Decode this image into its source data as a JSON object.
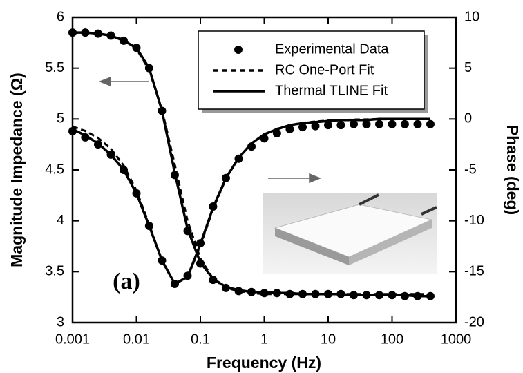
{
  "chart_data": {
    "type": "line",
    "log_x": true,
    "xlabel": "Frequency (Hz)",
    "ylabel": "Magnitude Impedance (Ω)",
    "y2label": "Phase (deg)",
    "xlim": [
      0.001,
      1000
    ],
    "xticks": [
      0.001,
      0.01,
      0.1,
      1,
      10,
      100,
      1000
    ],
    "ylim": [
      3,
      6
    ],
    "yticks": [
      3,
      3.5,
      4,
      4.5,
      5,
      5.5,
      6
    ],
    "y2lim": [
      -20,
      10
    ],
    "y2ticks": [
      -20,
      -15,
      -10,
      -5,
      0,
      5,
      10
    ],
    "legend": "upper right",
    "annotation": "(a)",
    "x": [
      0.001,
      0.00158,
      0.00251,
      0.00398,
      0.00631,
      0.01,
      0.0158,
      0.0251,
      0.0398,
      0.0631,
      0.1,
      0.158,
      0.251,
      0.398,
      0.631,
      1,
      1.58,
      2.51,
      3.98,
      6.31,
      10,
      15.8,
      25.1,
      39.8,
      63.1,
      100,
      158,
      251,
      398
    ],
    "series": [
      {
        "name": "Experimental Data",
        "color": "#000000",
        "style": "marker",
        "values": [
          5.85,
          5.85,
          5.84,
          5.82,
          5.77,
          5.7,
          5.5,
          5.08,
          4.45,
          3.9,
          3.58,
          3.42,
          3.34,
          3.31,
          3.3,
          3.29,
          3.29,
          3.28,
          3.28,
          3.28,
          3.28,
          3.28,
          3.27,
          3.27,
          3.27,
          3.27,
          3.26,
          3.26,
          3.26
        ]
      },
      {
        "name": "RC One-Port Fit",
        "color": "#000000",
        "style": "dashed",
        "values": [
          5.85,
          5.85,
          5.84,
          5.82,
          5.78,
          5.69,
          5.48,
          5.09,
          4.55,
          4.0,
          3.63,
          3.43,
          3.34,
          3.31,
          3.29,
          3.28,
          3.28,
          3.28,
          3.28,
          3.28,
          3.28,
          3.28,
          3.28,
          3.28,
          3.28,
          3.28,
          3.28,
          3.28,
          3.28
        ]
      },
      {
        "name": "Thermal TLINE Fit",
        "color": "#000000",
        "style": "solid",
        "values": [
          5.85,
          5.85,
          5.84,
          5.82,
          5.77,
          5.7,
          5.5,
          5.08,
          4.47,
          3.92,
          3.59,
          3.43,
          3.35,
          3.32,
          3.3,
          3.3,
          3.29,
          3.29,
          3.28,
          3.28,
          3.28,
          3.28,
          3.27,
          3.27,
          3.27,
          3.27,
          3.27,
          3.26,
          3.26
        ]
      },
      {
        "color": "#000000",
        "style": "marker",
        "axis": "y2",
        "values": [
          -1.2,
          -1.8,
          -2.5,
          -3.5,
          -5.0,
          -7.3,
          -10.5,
          -13.9,
          -16.2,
          -15.4,
          -12.2,
          -8.6,
          -5.8,
          -3.9,
          -2.7,
          -1.9,
          -1.4,
          -1.0,
          -0.8,
          -0.7,
          -0.6,
          -0.6,
          -0.5,
          -0.5,
          -0.5,
          -0.5,
          -0.5,
          -0.5,
          -0.5
        ]
      },
      {
        "color": "#000000",
        "style": "dashed",
        "axis": "y2",
        "values": [
          -0.74,
          -1.17,
          -1.85,
          -2.92,
          -4.57,
          -7.02,
          -10.34,
          -13.95,
          -16.21,
          -15.55,
          -12.45,
          -8.84,
          -5.87,
          -3.78,
          -2.41,
          -1.53,
          -0.96,
          -0.61,
          -0.38,
          -0.24,
          -0.15,
          -0.1,
          -0.06,
          -0.04,
          -0.02,
          -0.02,
          -0.01,
          -0.01,
          -0.01
        ]
      },
      {
        "color": "#000000",
        "style": "solid",
        "axis": "y2",
        "values": [
          -1.0,
          -1.6,
          -2.4,
          -3.5,
          -5.0,
          -7.3,
          -10.5,
          -13.9,
          -16.2,
          -15.5,
          -12.3,
          -8.7,
          -5.8,
          -3.8,
          -2.4,
          -1.5,
          -1.0,
          -0.6,
          -0.4,
          -0.3,
          -0.2,
          -0.1,
          -0.1,
          -0.1,
          0,
          0,
          0,
          0,
          0
        ]
      }
    ]
  }
}
